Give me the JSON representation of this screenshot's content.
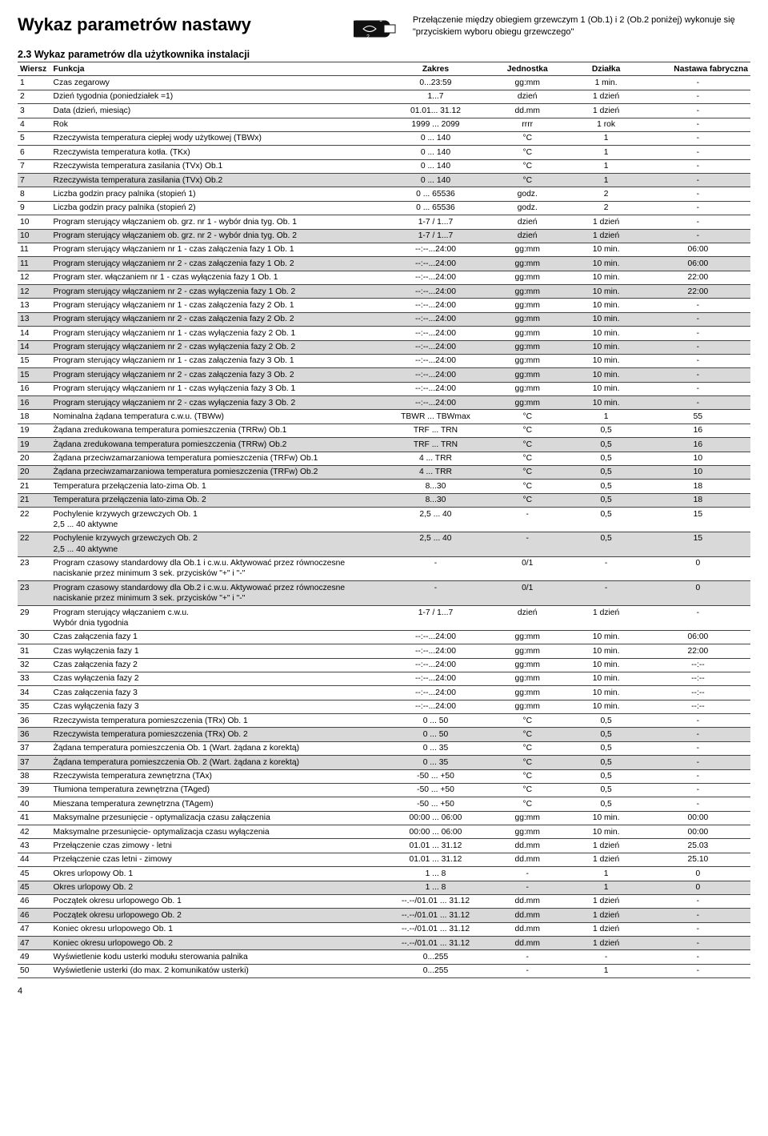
{
  "title": "Wykaz parametrów nastawy",
  "note": "Przełączenie między obiegiem grzewczym 1 (Ob.1) i 2 (Ob.2 poniżej) wykonuje się \"przyciskiem wyboru obiegu grzewczego\"",
  "subtitle": "2.3 Wykaz parametrów dla użytkownika instalacji",
  "columns": [
    "Wiersz",
    "Funkcja",
    "Zakres",
    "Jednostka",
    "Działka",
    "Nastawa fabryczna"
  ],
  "pagenum": "4",
  "rows": [
    {
      "w": "1",
      "f": "Czas zegarowy",
      "z": "0...23:59",
      "j": "gg:mm",
      "d": "1 min.",
      "n": "-"
    },
    {
      "w": "2",
      "f": "Dzień tygodnia (poniedziałek =1)",
      "z": "1...7",
      "j": "dzień",
      "d": "1 dzień",
      "n": "-"
    },
    {
      "w": "3",
      "f": "Data (dzień, miesiąc)",
      "z": "01.01... 31.12",
      "j": "dd.mm",
      "d": "1 dzień",
      "n": "-"
    },
    {
      "w": "4",
      "f": "Rok",
      "z": "1999 ... 2099",
      "j": "rrrr",
      "d": "1 rok",
      "n": "-"
    },
    {
      "w": "5",
      "f": "Rzeczywista temperatura ciepłej wody użytkowej (TBWx)",
      "z": "0 ... 140",
      "j": "°C",
      "d": "1",
      "n": "-"
    },
    {
      "w": "6",
      "f": "Rzeczywista temperatura kotła. (TKx)",
      "z": "0 ... 140",
      "j": "°C",
      "d": "1",
      "n": "-"
    },
    {
      "w": "7",
      "f": "Rzeczywista temperatura zasilania (TVx) Ob.1",
      "z": "0 ... 140",
      "j": "°C",
      "d": "1",
      "n": "-"
    },
    {
      "w": "7",
      "f": "Rzeczywista temperatura zasilania (TVx) Ob.2",
      "z": "0 ... 140",
      "j": "°C",
      "d": "1",
      "n": "-",
      "s": true
    },
    {
      "w": "8",
      "f": "Liczba godzin pracy palnika (stopień 1)",
      "z": "0 ... 65536",
      "j": "godz.",
      "d": "2",
      "n": "-"
    },
    {
      "w": "9",
      "f": "Liczba godzin pracy palnika (stopień 2)",
      "z": "0 ... 65536",
      "j": "godz.",
      "d": "2",
      "n": "-"
    },
    {
      "w": "10",
      "f": "Program sterujący włączaniem ob. grz. nr 1 - wybór dnia tyg. Ob. 1",
      "z": "1-7 / 1...7",
      "j": "dzień",
      "d": "1 dzień",
      "n": "-"
    },
    {
      "w": "10",
      "f": "Program sterujący włączaniem ob. grz. nr 2 - wybór dnia tyg. Ob. 2",
      "z": "1-7 / 1...7",
      "j": "dzień",
      "d": "1 dzień",
      "n": "-",
      "s": true
    },
    {
      "w": "11",
      "f": "Program sterujący włączaniem nr 1 - czas załączenia fazy 1 Ob. 1",
      "z": "--:--...24:00",
      "j": "gg:mm",
      "d": "10 min.",
      "n": "06:00"
    },
    {
      "w": "11",
      "f": "Program sterujący włączaniem nr 2 - czas załączenia fazy 1 Ob. 2",
      "z": "--:--...24:00",
      "j": "gg:mm",
      "d": "10 min.",
      "n": "06:00",
      "s": true
    },
    {
      "w": "12",
      "f": "Program ster. włączaniem nr 1 - czas wyłączenia fazy 1 Ob. 1",
      "z": "--:--...24:00",
      "j": "gg:mm",
      "d": "10 min.",
      "n": "22:00"
    },
    {
      "w": "12",
      "f": "Program sterujący włączaniem nr 2 - czas wyłączenia fazy 1 Ob. 2",
      "z": "--:--...24:00",
      "j": "gg:mm",
      "d": "10 min.",
      "n": "22:00",
      "s": true
    },
    {
      "w": "13",
      "f": "Program sterujący włączaniem nr 1 - czas załączenia fazy 2 Ob. 1",
      "z": "--:--...24:00",
      "j": "gg:mm",
      "d": "10 min.",
      "n": "-"
    },
    {
      "w": "13",
      "f": "Program sterujący włączaniem nr 2 - czas załączenia fazy 2 Ob. 2",
      "z": "--:--...24:00",
      "j": "gg:mm",
      "d": "10 min.",
      "n": "-",
      "s": true
    },
    {
      "w": "14",
      "f": "Program sterujący włączaniem nr 1 - czas wyłączenia fazy 2 Ob. 1",
      "z": "--:--...24:00",
      "j": "gg:mm",
      "d": "10 min.",
      "n": "-"
    },
    {
      "w": "14",
      "f": "Program sterujący włączaniem nr 2 - czas wyłączenia fazy 2 Ob. 2",
      "z": "--:--...24:00",
      "j": "gg:mm",
      "d": "10 min.",
      "n": "-",
      "s": true
    },
    {
      "w": "15",
      "f": "Program sterujący włączaniem nr 1 - czas załączenia fazy 3 Ob. 1",
      "z": "--:--...24:00",
      "j": "gg:mm",
      "d": "10 min.",
      "n": "-"
    },
    {
      "w": "15",
      "f": "Program sterujący włączaniem nr 2 - czas załączenia fazy 3 Ob. 2",
      "z": "--:--...24:00",
      "j": "gg:mm",
      "d": "10 min.",
      "n": "-",
      "s": true
    },
    {
      "w": "16",
      "f": "Program sterujący włączaniem nr 1 - czas wyłączenia fazy 3 Ob. 1",
      "z": "--:--...24:00",
      "j": "gg:mm",
      "d": "10 min.",
      "n": "-"
    },
    {
      "w": "16",
      "f": "Program sterujący włączaniem nr 2 - czas wyłączenia fazy 3 Ob. 2",
      "z": "--:--...24:00",
      "j": "gg:mm",
      "d": "10 min.",
      "n": "-",
      "s": true
    },
    {
      "w": "18",
      "f": "Nominalna żądana temperatura c.w.u. (TBWw)",
      "z": "TBWR ... TBWmax",
      "j": "°C",
      "d": "1",
      "n": "55"
    },
    {
      "w": "19",
      "f": "Żądana zredukowana temperatura pomieszczenia (TRRw) Ob.1",
      "z": "TRF ... TRN",
      "j": "°C",
      "d": "0,5",
      "n": "16"
    },
    {
      "w": "19",
      "f": "Żądana zredukowana temperatura pomieszczenia (TRRw) Ob.2",
      "z": "TRF ... TRN",
      "j": "°C",
      "d": "0,5",
      "n": "16",
      "s": true
    },
    {
      "w": "20",
      "f": "Żądana przeciwzamarzaniowa temperatura pomieszczenia (TRFw) Ob.1",
      "z": "4 ... TRR",
      "j": "°C",
      "d": "0,5",
      "n": "10"
    },
    {
      "w": "20",
      "f": "Żądana przeciwzamarzaniowa temperatura pomieszczenia (TRFw) Ob.2",
      "z": "4 ... TRR",
      "j": "°C",
      "d": "0,5",
      "n": "10",
      "s": true
    },
    {
      "w": "21",
      "f": "Temperatura przełączenia lato-zima Ob. 1",
      "z": "8...30",
      "j": "°C",
      "d": "0,5",
      "n": "18"
    },
    {
      "w": "21",
      "f": "Temperatura przełączenia lato-zima Ob. 2",
      "z": "8...30",
      "j": "°C",
      "d": "0,5",
      "n": "18",
      "s": true
    },
    {
      "w": "22",
      "f": "Pochylenie krzywych grzewczych Ob. 1\n2,5 ... 40 aktywne",
      "z": "2,5 ... 40",
      "j": "-",
      "d": "0,5",
      "n": "15"
    },
    {
      "w": "22",
      "f": "Pochylenie krzywych grzewczych Ob. 2\n2,5 ... 40 aktywne",
      "z": "2,5 ... 40",
      "j": "-",
      "d": "0,5",
      "n": "15",
      "s": true
    },
    {
      "w": "23",
      "f": "Program czasowy standardowy dla Ob.1 i c.w.u. Aktywować przez równoczesne naciskanie przez minimum 3 sek. przycisków \"+\" i \"-\"",
      "z": "-",
      "j": "0/1",
      "d": "-",
      "n": "0"
    },
    {
      "w": "23",
      "f": "Program czasowy standardowy dla Ob.2 i c.w.u. Aktywować przez równoczesne naciskanie przez minimum 3 sek. przycisków \"+\" i \"-\"",
      "z": "-",
      "j": "0/1",
      "d": "-",
      "n": "0",
      "s": true
    },
    {
      "w": "29",
      "f": "Program sterujący włączaniem c.w.u.\nWybór dnia tygodnia",
      "z": "1-7 / 1...7",
      "j": "dzień",
      "d": "1 dzień",
      "n": "-"
    },
    {
      "w": "30",
      "f": "Czas załączenia fazy 1",
      "z": "--:--...24:00",
      "j": "gg:mm",
      "d": "10 min.",
      "n": "06:00"
    },
    {
      "w": "31",
      "f": "Czas wyłączenia fazy 1",
      "z": "--:--...24:00",
      "j": "gg:mm",
      "d": "10 min.",
      "n": "22:00"
    },
    {
      "w": "32",
      "f": "Czas załączenia fazy 2",
      "z": "--:--...24:00",
      "j": "gg:mm",
      "d": "10 min.",
      "n": "--:--"
    },
    {
      "w": "33",
      "f": "Czas wyłączenia fazy 2",
      "z": "--:--...24:00",
      "j": "gg:mm",
      "d": "10 min.",
      "n": "--:--"
    },
    {
      "w": "34",
      "f": "Czas załączenia fazy 3",
      "z": "--:--...24:00",
      "j": "gg:mm",
      "d": "10 min.",
      "n": "--:--"
    },
    {
      "w": "35",
      "f": "Czas wyłączenia fazy 3",
      "z": "--:--...24:00",
      "j": "gg:mm",
      "d": "10 min.",
      "n": "--:--"
    },
    {
      "w": "36",
      "f": "Rzeczywista temperatura pomieszczenia (TRx) Ob. 1",
      "z": "0 ... 50",
      "j": "°C",
      "d": "0,5",
      "n": "-"
    },
    {
      "w": "36",
      "f": "Rzeczywista temperatura pomieszczenia (TRx) Ob. 2",
      "z": "0 ... 50",
      "j": "°C",
      "d": "0,5",
      "n": "-",
      "s": true
    },
    {
      "w": "37",
      "f": "Żądana temperatura pomieszczenia Ob. 1 (Wart. żądana z korektą)",
      "z": "0 ... 35",
      "j": "°C",
      "d": "0,5",
      "n": "-"
    },
    {
      "w": "37",
      "f": "Żądana temperatura pomieszczenia Ob. 2 (Wart. żądana z korektą)",
      "z": "0 ... 35",
      "j": "°C",
      "d": "0,5",
      "n": "-",
      "s": true
    },
    {
      "w": "38",
      "f": "Rzeczywista temperatura zewnętrzna (TAx)",
      "z": "-50 ... +50",
      "j": "°C",
      "d": "0,5",
      "n": "-"
    },
    {
      "w": "39",
      "f": "Tłumiona temperatura zewnętrzna (TAged)",
      "z": "-50 ... +50",
      "j": "°C",
      "d": "0,5",
      "n": "-"
    },
    {
      "w": "40",
      "f": "Mieszana temperatura zewnętrzna (TAgem)",
      "z": "-50 ... +50",
      "j": "°C",
      "d": "0,5",
      "n": "-"
    },
    {
      "w": "41",
      "f": "Maksymalne przesunięcie - optymalizacja czasu załączenia",
      "z": "00:00 ... 06:00",
      "j": "gg:mm",
      "d": "10 min.",
      "n": "00:00"
    },
    {
      "w": "42",
      "f": "Maksymalne przesunięcie- optymalizacja czasu wyłączenia",
      "z": "00:00 ... 06:00",
      "j": "gg:mm",
      "d": "10 min.",
      "n": "00:00"
    },
    {
      "w": "43",
      "f": "Przełączenie czas zimowy - letni",
      "z": "01.01 ... 31.12",
      "j": "dd.mm",
      "d": "1 dzień",
      "n": "25.03"
    },
    {
      "w": "44",
      "f": "Przełączenie czas letni - zimowy",
      "z": "01.01 ... 31.12",
      "j": "dd.mm",
      "d": "1 dzień",
      "n": "25.10"
    },
    {
      "w": "45",
      "f": "Okres urlopowy Ob. 1",
      "z": "1 ... 8",
      "j": "-",
      "d": "1",
      "n": "0"
    },
    {
      "w": "45",
      "f": "Okres urlopowy Ob. 2",
      "z": "1 ... 8",
      "j": "-",
      "d": "1",
      "n": "0",
      "s": true
    },
    {
      "w": "46",
      "f": "Początek okresu urlopowego Ob. 1",
      "z": "--.--/01.01 ... 31.12",
      "j": "dd.mm",
      "d": "1 dzień",
      "n": "-"
    },
    {
      "w": "46",
      "f": "Początek okresu urlopowego Ob. 2",
      "z": "--.--/01.01 ... 31.12",
      "j": "dd.mm",
      "d": "1 dzień",
      "n": "-",
      "s": true
    },
    {
      "w": "47",
      "f": "Koniec okresu urlopowego Ob. 1",
      "z": "--.--/01.01 ... 31.12",
      "j": "dd.mm",
      "d": "1 dzień",
      "n": "-"
    },
    {
      "w": "47",
      "f": "Koniec okresu urlopowego Ob. 2",
      "z": "--.--/01.01 ... 31.12",
      "j": "dd.mm",
      "d": "1 dzień",
      "n": "-",
      "s": true
    },
    {
      "w": "49",
      "f": "Wyświetlenie kodu usterki modułu sterowania palnika",
      "z": "0...255",
      "j": "-",
      "d": "-",
      "n": "-"
    },
    {
      "w": "50",
      "f": "Wyświetlenie usterki (do max. 2 komunikatów usterki)",
      "z": "0...255",
      "j": "-",
      "d": "1",
      "n": "-"
    }
  ]
}
